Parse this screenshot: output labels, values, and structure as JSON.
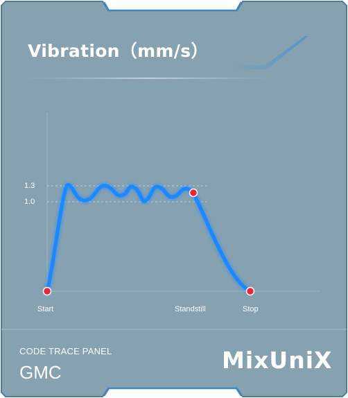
{
  "panel": {
    "title": "Vibration（mm/s）",
    "footer_label": "CODE TRACE PANEL",
    "footer_code": "GMC",
    "brand": "MixUniX"
  },
  "chart_data": {
    "type": "line",
    "title": "Vibration（mm/s）",
    "xlabel": "",
    "ylabel": "",
    "y_ticks": [
      "1.3",
      "1.0"
    ],
    "x_labels": [
      "Start",
      "Standstill",
      "Stop"
    ],
    "grid": "dashed reference lines at 1.0 and 1.3",
    "series": [
      {
        "color": "#1e88ff",
        "marked_points": [
          "Start",
          "Standstill",
          "Stop"
        ]
      }
    ]
  },
  "colors": {
    "panel_bg": "#85a1b0",
    "frame": "#5a7f92",
    "line": "#1e88ff",
    "marker": "#e8283a"
  }
}
